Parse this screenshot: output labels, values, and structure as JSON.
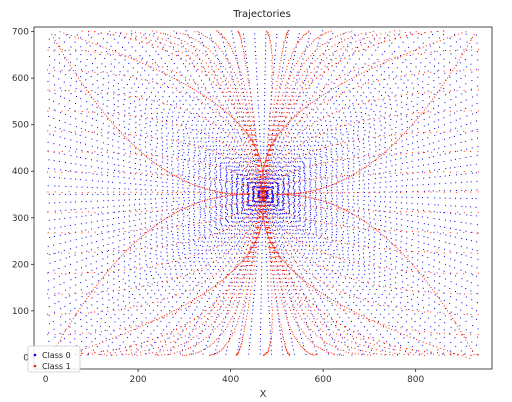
{
  "chart_data": {
    "type": "scatter",
    "title": "Trajectories",
    "xlabel": "X",
    "ylabel": "",
    "xlim": [
      -25,
      965
    ],
    "ylim": [
      -25,
      710
    ],
    "xticks": [
      0,
      200,
      400,
      600,
      800
    ],
    "yticks": [
      0,
      100,
      200,
      300,
      400,
      500,
      600,
      700
    ],
    "grid": false,
    "legend_position": "bottom-left",
    "center": [
      470,
      350
    ],
    "series": [
      {
        "name": "Class 0",
        "color": "#0000ff",
        "marker": "dot"
      },
      {
        "name": "Class 1",
        "color": "#ff2200",
        "marker": "dot"
      }
    ]
  }
}
